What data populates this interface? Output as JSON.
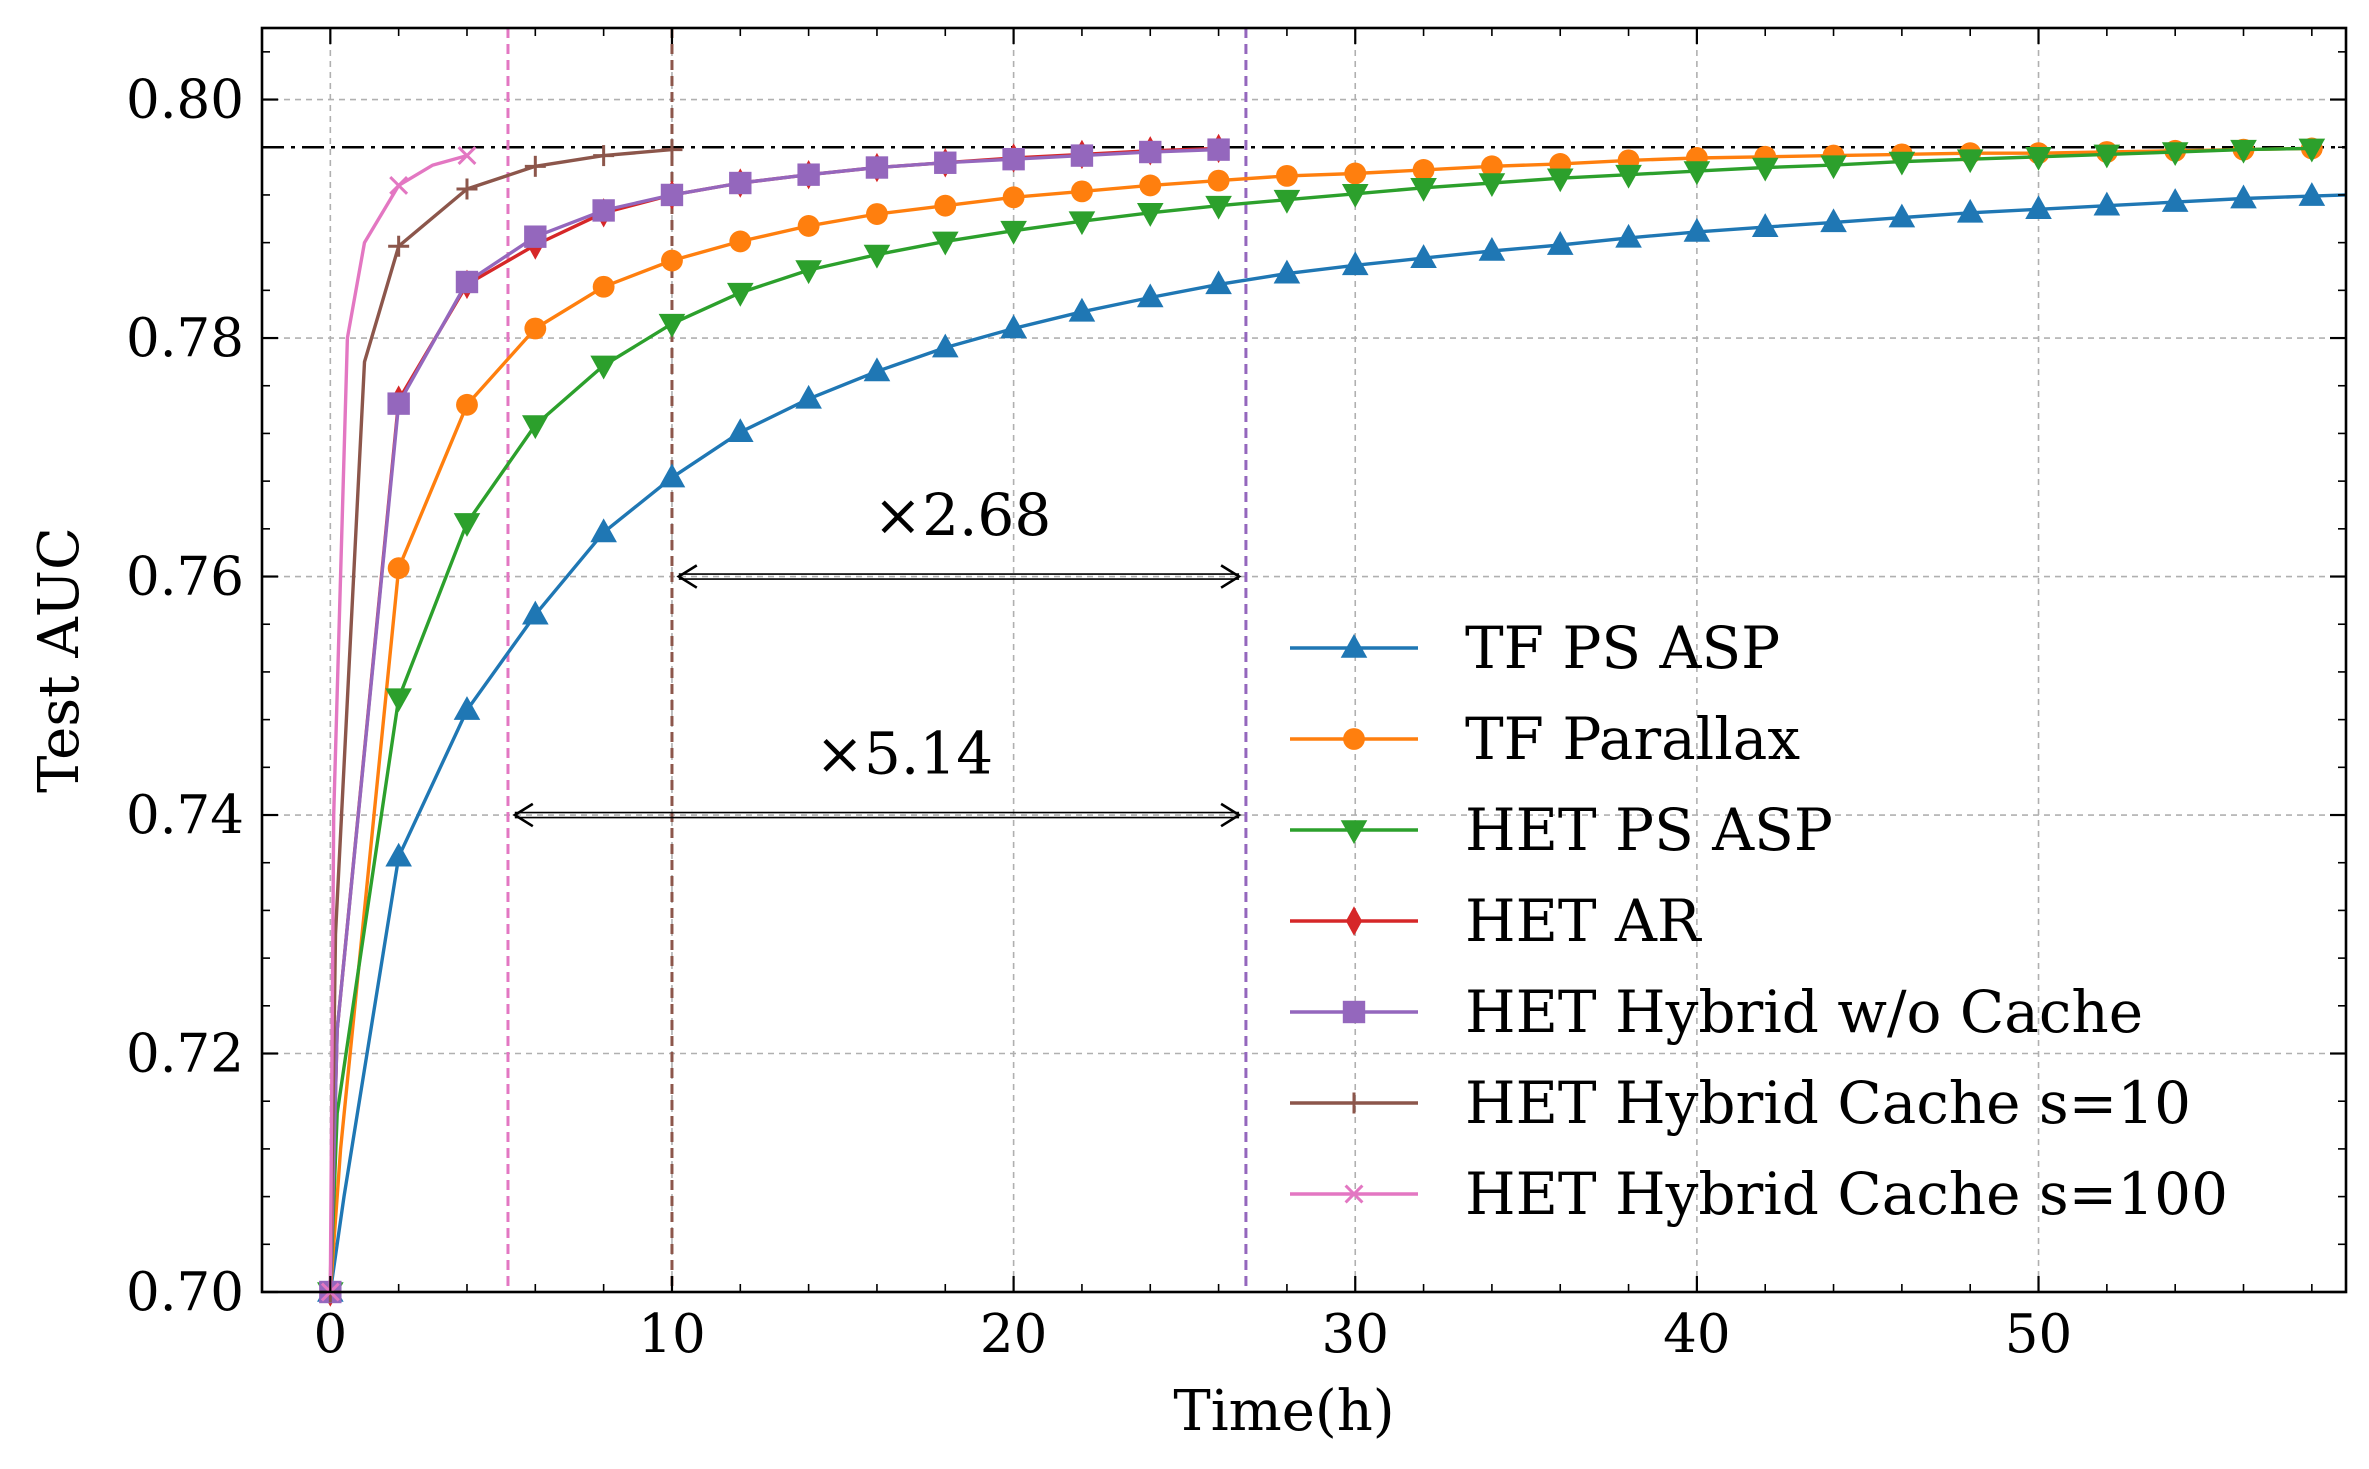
{
  "chart_data": {
    "type": "line",
    "title": "",
    "xlabel": "Time(h)",
    "ylabel": "Test AUC",
    "xlim": [
      -2,
      59
    ],
    "ylim": [
      0.7,
      0.806
    ],
    "xticks": [
      0,
      10,
      20,
      30,
      40,
      50
    ],
    "xtick_labels": [
      "0",
      "10",
      "20",
      "30",
      "40",
      "50"
    ],
    "yticks": [
      0.7,
      0.72,
      0.74,
      0.76,
      0.78,
      0.8
    ],
    "ytick_labels": [
      "0.70",
      "0.72",
      "0.74",
      "0.76",
      "0.78",
      "0.80"
    ],
    "grid": true,
    "legend_position": "lower-right",
    "target_auc": 0.796,
    "vertical_markers": [
      {
        "x": 5.2,
        "color": "#e377c2"
      },
      {
        "x": 10.0,
        "color": "#8c564b"
      },
      {
        "x": 26.8,
        "color": "#9467bd"
      }
    ],
    "annotations": [
      {
        "text": "×2.68",
        "x_from": 10.2,
        "x_to": 26.6,
        "y": 0.76,
        "text_x": 18.5,
        "text_y": 0.7635
      },
      {
        "text": "×5.14",
        "x_from": 5.4,
        "x_to": 26.6,
        "y": 0.74,
        "text_x": 16.8,
        "text_y": 0.7435
      }
    ],
    "series": [
      {
        "name": "TF PS ASP",
        "color": "#1f77b4",
        "marker": "triangle-up",
        "x": [
          0,
          0.4,
          2,
          4,
          6,
          8,
          10,
          12,
          14,
          16,
          18,
          20,
          22,
          24,
          26,
          28,
          30,
          32,
          34,
          36,
          38,
          40,
          42,
          44,
          46,
          48,
          50,
          52,
          54,
          56,
          58,
          59
        ],
        "y": [
          0.7,
          0.708,
          0.7365,
          0.7488,
          0.7568,
          0.7637,
          0.7683,
          0.7721,
          0.7749,
          0.7772,
          0.7792,
          0.7808,
          0.7822,
          0.7834,
          0.7845,
          0.7854,
          0.7861,
          0.7867,
          0.7873,
          0.7878,
          0.7884,
          0.7889,
          0.7893,
          0.7897,
          0.7901,
          0.7905,
          0.7908,
          0.7911,
          0.7914,
          0.7917,
          0.7919,
          0.792
        ]
      },
      {
        "name": "TF Parallax",
        "color": "#ff7f0e",
        "marker": "circle",
        "x": [
          0,
          0.3,
          2,
          4,
          6,
          8,
          10,
          12,
          14,
          16,
          18,
          20,
          22,
          24,
          26,
          28,
          30,
          32,
          34,
          36,
          38,
          40,
          42,
          44,
          46,
          48,
          50,
          52,
          54,
          56,
          58
        ],
        "y": [
          0.7,
          0.712,
          0.7607,
          0.7744,
          0.7808,
          0.7843,
          0.7865,
          0.7881,
          0.7894,
          0.7904,
          0.7911,
          0.7918,
          0.7923,
          0.7928,
          0.7932,
          0.7936,
          0.7938,
          0.7941,
          0.7944,
          0.7946,
          0.7949,
          0.7951,
          0.7952,
          0.7953,
          0.7954,
          0.7955,
          0.7955,
          0.7956,
          0.7957,
          0.7958,
          0.7959
        ]
      },
      {
        "name": "HET PS ASP",
        "color": "#2ca02c",
        "marker": "triangle-down",
        "x": [
          0,
          0.2,
          2,
          4,
          6,
          8,
          10,
          12,
          14,
          16,
          18,
          20,
          22,
          24,
          26,
          28,
          30,
          32,
          34,
          36,
          38,
          40,
          42,
          44,
          46,
          48,
          50,
          52,
          54,
          56,
          58
        ],
        "y": [
          0.7,
          0.715,
          0.7498,
          0.7645,
          0.7727,
          0.7777,
          0.7812,
          0.7838,
          0.7857,
          0.787,
          0.7881,
          0.789,
          0.7898,
          0.7905,
          0.7911,
          0.7916,
          0.7921,
          0.7926,
          0.793,
          0.7934,
          0.7937,
          0.794,
          0.7943,
          0.7945,
          0.7948,
          0.795,
          0.7952,
          0.7954,
          0.7956,
          0.7958,
          0.7959
        ]
      },
      {
        "name": "HET AR",
        "color": "#d62728",
        "marker": "diamond",
        "x": [
          0,
          0.2,
          2,
          4,
          6,
          8,
          10,
          12,
          14,
          16,
          18,
          20,
          22,
          24,
          26
        ],
        "y": [
          0.7,
          0.722,
          0.7748,
          0.7845,
          0.7878,
          0.7905,
          0.792,
          0.793,
          0.7937,
          0.7943,
          0.7947,
          0.7951,
          0.7954,
          0.7957,
          0.7959
        ]
      },
      {
        "name": "HET Hybrid w/o Cache",
        "color": "#9467bd",
        "marker": "square",
        "x": [
          0,
          0.2,
          2,
          4,
          6,
          8,
          10,
          12,
          14,
          16,
          18,
          20,
          22,
          24,
          26
        ],
        "y": [
          0.7,
          0.722,
          0.7745,
          0.7847,
          0.7885,
          0.7907,
          0.792,
          0.793,
          0.7937,
          0.7943,
          0.7947,
          0.795,
          0.7953,
          0.7956,
          0.7958
        ]
      },
      {
        "name": "HET Hybrid Cache s=10",
        "color": "#8c564b",
        "marker": "plus",
        "x": [
          0,
          0.15,
          1,
          2,
          4,
          6,
          8,
          10
        ],
        "y": [
          0.7,
          0.73,
          0.778,
          0.7877,
          0.7925,
          0.7944,
          0.7953,
          0.7958
        ]
      },
      {
        "name": "HET Hybrid Cache s=100",
        "color": "#e377c2",
        "marker": "x",
        "x": [
          0,
          0.1,
          0.5,
          1,
          2,
          3,
          4
        ],
        "y": [
          0.7,
          0.74,
          0.78,
          0.788,
          0.7928,
          0.7945,
          0.7953
        ]
      }
    ]
  }
}
